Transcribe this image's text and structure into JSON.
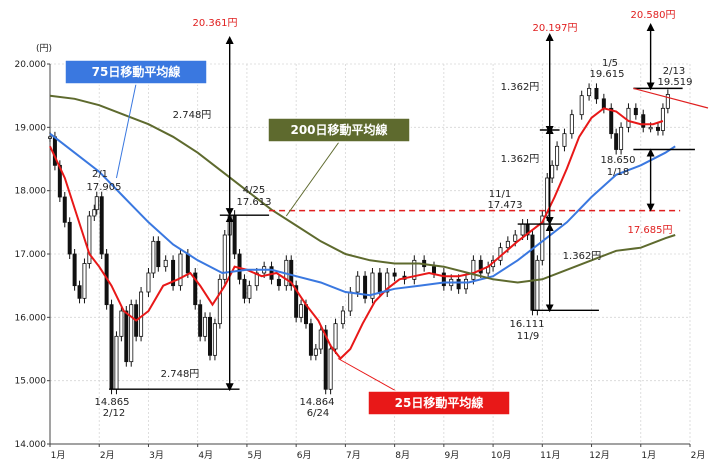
{
  "chart_data": {
    "type": "line",
    "unit_label": "(円)",
    "ylim": [
      14000,
      20000
    ],
    "y_ticks": [
      {
        "value": 20000,
        "label": "20.000"
      },
      {
        "value": 19000,
        "label": "19.000"
      },
      {
        "value": 18000,
        "label": "18.000"
      },
      {
        "value": 17000,
        "label": "17.000"
      },
      {
        "value": 16000,
        "label": "16.000"
      },
      {
        "value": 15000,
        "label": "15.000"
      },
      {
        "value": 14000,
        "label": "14.000"
      }
    ],
    "xlim": [
      0,
      13
    ],
    "x_ticks": [
      {
        "value": 0,
        "label": "1月"
      },
      {
        "value": 1,
        "label": "2月"
      },
      {
        "value": 2,
        "label": "3月"
      },
      {
        "value": 3,
        "label": "4月"
      },
      {
        "value": 4,
        "label": "5月"
      },
      {
        "value": 5,
        "label": "6月"
      },
      {
        "value": 6,
        "label": "7月"
      },
      {
        "value": 7,
        "label": "8月"
      },
      {
        "value": 8,
        "label": "9月"
      },
      {
        "value": 9,
        "label": "10月"
      },
      {
        "value": 10,
        "label": "11月"
      },
      {
        "value": 11,
        "label": "12月"
      },
      {
        "value": 12,
        "label": "1月"
      },
      {
        "value": 13,
        "label": "2月"
      }
    ],
    "price_series": [
      [
        0.0,
        18850
      ],
      [
        0.1,
        18400
      ],
      [
        0.2,
        17900
      ],
      [
        0.3,
        17500
      ],
      [
        0.4,
        17000
      ],
      [
        0.5,
        16500
      ],
      [
        0.6,
        16300
      ],
      [
        0.7,
        16850
      ],
      [
        0.8,
        17600
      ],
      [
        0.9,
        17700
      ],
      [
        0.95,
        17905
      ],
      [
        1.05,
        17000
      ],
      [
        1.15,
        16200
      ],
      [
        1.25,
        14865
      ],
      [
        1.35,
        15700
      ],
      [
        1.45,
        16100
      ],
      [
        1.55,
        15300
      ],
      [
        1.65,
        16200
      ],
      [
        1.75,
        15700
      ],
      [
        1.85,
        16400
      ],
      [
        2.0,
        16700
      ],
      [
        2.1,
        17200
      ],
      [
        2.2,
        16800
      ],
      [
        2.35,
        16900
      ],
      [
        2.5,
        16500
      ],
      [
        2.65,
        17000
      ],
      [
        2.8,
        16700
      ],
      [
        2.95,
        16200
      ],
      [
        3.05,
        15700
      ],
      [
        3.15,
        16000
      ],
      [
        3.25,
        15400
      ],
      [
        3.35,
        15900
      ],
      [
        3.45,
        16600
      ],
      [
        3.55,
        17300
      ],
      [
        3.65,
        17613
      ],
      [
        3.75,
        17000
      ],
      [
        3.85,
        16600
      ],
      [
        3.95,
        16300
      ],
      [
        4.05,
        16500
      ],
      [
        4.2,
        16700
      ],
      [
        4.35,
        16800
      ],
      [
        4.5,
        16600
      ],
      [
        4.65,
        16500
      ],
      [
        4.8,
        16900
      ],
      [
        4.9,
        16500
      ],
      [
        5.0,
        16000
      ],
      [
        5.1,
        16200
      ],
      [
        5.2,
        15900
      ],
      [
        5.3,
        15400
      ],
      [
        5.4,
        15500
      ],
      [
        5.5,
        15800
      ],
      [
        5.6,
        14864
      ],
      [
        5.7,
        15500
      ],
      [
        5.8,
        15900
      ],
      [
        5.95,
        16100
      ],
      [
        6.1,
        16400
      ],
      [
        6.25,
        16650
      ],
      [
        6.4,
        16300
      ],
      [
        6.55,
        16700
      ],
      [
        6.7,
        16400
      ],
      [
        6.85,
        16700
      ],
      [
        7.0,
        16650
      ],
      [
        7.2,
        16600
      ],
      [
        7.4,
        16900
      ],
      [
        7.6,
        16800
      ],
      [
        7.8,
        16700
      ],
      [
        8.0,
        16500
      ],
      [
        8.15,
        16600
      ],
      [
        8.3,
        16450
      ],
      [
        8.45,
        16600
      ],
      [
        8.6,
        16900
      ],
      [
        8.75,
        16700
      ],
      [
        8.9,
        16800
      ],
      [
        9.0,
        16900
      ],
      [
        9.15,
        17100
      ],
      [
        9.3,
        17200
      ],
      [
        9.45,
        17300
      ],
      [
        9.6,
        17473
      ],
      [
        9.7,
        17300
      ],
      [
        9.8,
        16111
      ],
      [
        9.9,
        16900
      ],
      [
        10.0,
        17600
      ],
      [
        10.1,
        18200
      ],
      [
        10.2,
        18400
      ],
      [
        10.3,
        18700
      ],
      [
        10.45,
        18900
      ],
      [
        10.6,
        19200
      ],
      [
        10.8,
        19500
      ],
      [
        10.95,
        19615
      ],
      [
        11.1,
        19450
      ],
      [
        11.25,
        19300
      ],
      [
        11.4,
        18900
      ],
      [
        11.5,
        18650
      ],
      [
        11.6,
        19000
      ],
      [
        11.75,
        19300
      ],
      [
        11.9,
        19200
      ],
      [
        12.05,
        19000
      ],
      [
        12.2,
        19000
      ],
      [
        12.35,
        18950
      ],
      [
        12.45,
        19300
      ],
      [
        12.55,
        19519
      ]
    ],
    "series": [
      {
        "name": "25日移動平均線",
        "color": "#e81818",
        "points": [
          [
            0.0,
            18700
          ],
          [
            0.3,
            18200
          ],
          [
            0.55,
            17600
          ],
          [
            0.8,
            17000
          ],
          [
            1.0,
            16800
          ],
          [
            1.25,
            16500
          ],
          [
            1.5,
            16100
          ],
          [
            1.75,
            15950
          ],
          [
            2.0,
            16100
          ],
          [
            2.3,
            16500
          ],
          [
            2.6,
            16600
          ],
          [
            2.85,
            16700
          ],
          [
            3.05,
            16500
          ],
          [
            3.3,
            16200
          ],
          [
            3.55,
            16500
          ],
          [
            3.75,
            16800
          ],
          [
            4.0,
            16750
          ],
          [
            4.3,
            16650
          ],
          [
            4.6,
            16700
          ],
          [
            4.9,
            16550
          ],
          [
            5.2,
            16200
          ],
          [
            5.45,
            15950
          ],
          [
            5.7,
            15550
          ],
          [
            5.9,
            15350
          ],
          [
            6.1,
            15500
          ],
          [
            6.35,
            15900
          ],
          [
            6.6,
            16250
          ],
          [
            6.85,
            16450
          ],
          [
            7.1,
            16600
          ],
          [
            7.4,
            16650
          ],
          [
            7.7,
            16700
          ],
          [
            8.0,
            16650
          ],
          [
            8.3,
            16650
          ],
          [
            8.6,
            16700
          ],
          [
            8.9,
            16800
          ],
          [
            9.2,
            17000
          ],
          [
            9.5,
            17200
          ],
          [
            9.75,
            17350
          ],
          [
            10.0,
            17500
          ],
          [
            10.25,
            17900
          ],
          [
            10.5,
            18350
          ],
          [
            10.75,
            18850
          ],
          [
            11.0,
            19150
          ],
          [
            11.25,
            19300
          ],
          [
            11.5,
            19250
          ],
          [
            11.75,
            19100
          ],
          [
            12.0,
            19050
          ],
          [
            12.25,
            19050
          ],
          [
            12.45,
            19100
          ]
        ]
      },
      {
        "name": "75日移動平均線",
        "color": "#3a78e0",
        "points": [
          [
            0.0,
            18900
          ],
          [
            0.5,
            18600
          ],
          [
            1.0,
            18300
          ],
          [
            1.5,
            17900
          ],
          [
            2.0,
            17500
          ],
          [
            2.5,
            17150
          ],
          [
            3.0,
            16900
          ],
          [
            3.5,
            16700
          ],
          [
            4.0,
            16750
          ],
          [
            4.5,
            16750
          ],
          [
            5.0,
            16650
          ],
          [
            5.5,
            16550
          ],
          [
            6.0,
            16400
          ],
          [
            6.5,
            16350
          ],
          [
            7.0,
            16450
          ],
          [
            7.5,
            16500
          ],
          [
            8.0,
            16550
          ],
          [
            8.5,
            16550
          ],
          [
            9.0,
            16650
          ],
          [
            9.5,
            16900
          ],
          [
            10.0,
            17200
          ],
          [
            10.5,
            17500
          ],
          [
            11.0,
            17900
          ],
          [
            11.5,
            18250
          ],
          [
            12.0,
            18400
          ],
          [
            12.5,
            18600
          ],
          [
            12.7,
            18700
          ]
        ]
      },
      {
        "name": "200日移動平均線",
        "color": "#5e6a2e",
        "points": [
          [
            0.0,
            19500
          ],
          [
            0.5,
            19450
          ],
          [
            1.0,
            19350
          ],
          [
            1.5,
            19200
          ],
          [
            2.0,
            19050
          ],
          [
            2.5,
            18850
          ],
          [
            3.0,
            18600
          ],
          [
            3.5,
            18300
          ],
          [
            4.0,
            18000
          ],
          [
            4.5,
            17700
          ],
          [
            5.0,
            17450
          ],
          [
            5.5,
            17200
          ],
          [
            6.0,
            17000
          ],
          [
            6.5,
            16900
          ],
          [
            7.0,
            16850
          ],
          [
            7.5,
            16850
          ],
          [
            8.0,
            16800
          ],
          [
            8.5,
            16700
          ],
          [
            9.0,
            16600
          ],
          [
            9.5,
            16550
          ],
          [
            10.0,
            16600
          ],
          [
            10.5,
            16750
          ],
          [
            11.0,
            16900
          ],
          [
            11.5,
            17050
          ],
          [
            12.0,
            17100
          ],
          [
            12.5,
            17250
          ],
          [
            12.7,
            17300
          ]
        ]
      }
    ],
    "legends": [
      {
        "name": "75日移動平均線",
        "color": "#3a78e0"
      },
      {
        "name": "200日移動平均線",
        "color": "#5e6a2e"
      },
      {
        "name": "25日移動平均線",
        "color": "#e81818"
      }
    ],
    "annotations": {
      "high_20361": "20.361円",
      "high_20197": "20.197円",
      "high_20580": "20.580円",
      "range_2748_top": "2.748円",
      "range_2748_bottom": "2.748円",
      "range_1362_a": "1.362円",
      "range_1362_b": "1.362円",
      "range_1362_c": "1.362円",
      "feb1_date": "2/1",
      "feb1_value": "17.905",
      "apr25_date": "4/25",
      "apr25_value": "17.613",
      "feb12_value": "14.865",
      "feb12_date": "2/12",
      "jun24_value": "14.864",
      "jun24_date": "6/24",
      "nov1_date": "11/1",
      "nov1_value": "17.473",
      "nov9_value": "16.111",
      "nov9_date": "11/9",
      "jan5_date": "1/5",
      "jan5_value": "19.615",
      "feb13_date": "2/13",
      "feb13_value": "19.519",
      "jan18_value": "18.650",
      "jan18_date": "1/18",
      "resistance_value": "17.685円"
    }
  }
}
